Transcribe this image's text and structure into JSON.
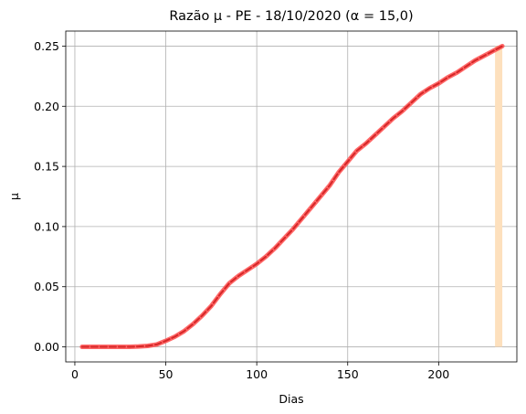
{
  "chart_data": {
    "type": "line",
    "title": "Razão μ - PE - 18/10/2020 (α = 15,0)",
    "xlabel": "Dias",
    "ylabel": "μ",
    "xlim": [
      -5,
      243
    ],
    "ylim": [
      -0.0125,
      0.2625
    ],
    "grid": true,
    "x_ticks": [
      0,
      50,
      100,
      150,
      200
    ],
    "x_tick_labels": [
      "0",
      "50",
      "100",
      "150",
      "200"
    ],
    "y_ticks": [
      0,
      0.05,
      0.1,
      0.15,
      0.2,
      0.25
    ],
    "y_tick_labels": [
      "0.00",
      "0.05",
      "0.10",
      "0.15",
      "0.20",
      "0.25"
    ],
    "highlight_band": {
      "x_from": 231,
      "x_to": 235,
      "y_from": 0,
      "y_to": 0.25,
      "color": "#fde0bd"
    },
    "series": [
      {
        "style": "solid",
        "color": "#ff4d4d",
        "points": [
          [
            4,
            0
          ],
          [
            10,
            0
          ],
          [
            20,
            0
          ],
          [
            30,
            0
          ],
          [
            35,
            0.0003
          ],
          [
            40,
            0.0008
          ],
          [
            45,
            0.002
          ],
          [
            50,
            0.005
          ],
          [
            55,
            0.0085
          ],
          [
            60,
            0.013
          ],
          [
            65,
            0.019
          ],
          [
            70,
            0.026
          ],
          [
            75,
            0.034
          ],
          [
            80,
            0.044
          ],
          [
            85,
            0.053
          ],
          [
            90,
            0.059
          ],
          [
            95,
            0.064
          ],
          [
            100,
            0.069
          ],
          [
            105,
            0.075
          ],
          [
            110,
            0.082
          ],
          [
            115,
            0.09
          ],
          [
            120,
            0.098
          ],
          [
            125,
            0.107
          ],
          [
            130,
            0.116
          ],
          [
            135,
            0.125
          ],
          [
            140,
            0.134
          ],
          [
            145,
            0.145
          ],
          [
            150,
            0.154
          ],
          [
            155,
            0.163
          ],
          [
            160,
            0.169
          ],
          [
            165,
            0.176
          ],
          [
            170,
            0.183
          ],
          [
            175,
            0.19
          ],
          [
            180,
            0.196
          ],
          [
            185,
            0.203
          ],
          [
            190,
            0.21
          ],
          [
            195,
            0.215
          ],
          [
            200,
            0.219
          ],
          [
            205,
            0.224
          ],
          [
            210,
            0.228
          ],
          [
            215,
            0.233
          ],
          [
            220,
            0.238
          ],
          [
            225,
            0.242
          ],
          [
            230,
            0.246
          ],
          [
            235,
            0.25
          ]
        ]
      },
      {
        "style": "dashed",
        "color": "#d62728",
        "points": [
          [
            4,
            0
          ],
          [
            10,
            0
          ],
          [
            20,
            0
          ],
          [
            30,
            0
          ],
          [
            35,
            0.0003
          ],
          [
            40,
            0.0008
          ],
          [
            45,
            0.002
          ],
          [
            50,
            0.005
          ],
          [
            55,
            0.0085
          ],
          [
            60,
            0.013
          ],
          [
            65,
            0.019
          ],
          [
            70,
            0.026
          ],
          [
            75,
            0.034
          ],
          [
            80,
            0.044
          ],
          [
            85,
            0.053
          ],
          [
            90,
            0.059
          ],
          [
            95,
            0.064
          ],
          [
            100,
            0.069
          ],
          [
            105,
            0.075
          ],
          [
            110,
            0.082
          ],
          [
            115,
            0.09
          ],
          [
            120,
            0.098
          ],
          [
            125,
            0.107
          ],
          [
            130,
            0.116
          ],
          [
            135,
            0.125
          ],
          [
            140,
            0.134
          ],
          [
            145,
            0.145
          ],
          [
            150,
            0.154
          ],
          [
            155,
            0.163
          ],
          [
            160,
            0.169
          ],
          [
            165,
            0.176
          ],
          [
            170,
            0.183
          ],
          [
            175,
            0.19
          ],
          [
            180,
            0.196
          ],
          [
            185,
            0.203
          ],
          [
            190,
            0.21
          ],
          [
            195,
            0.215
          ],
          [
            200,
            0.219
          ],
          [
            205,
            0.224
          ],
          [
            210,
            0.228
          ],
          [
            215,
            0.233
          ],
          [
            220,
            0.238
          ],
          [
            225,
            0.242
          ],
          [
            230,
            0.246
          ],
          [
            235,
            0.25
          ]
        ]
      }
    ]
  }
}
